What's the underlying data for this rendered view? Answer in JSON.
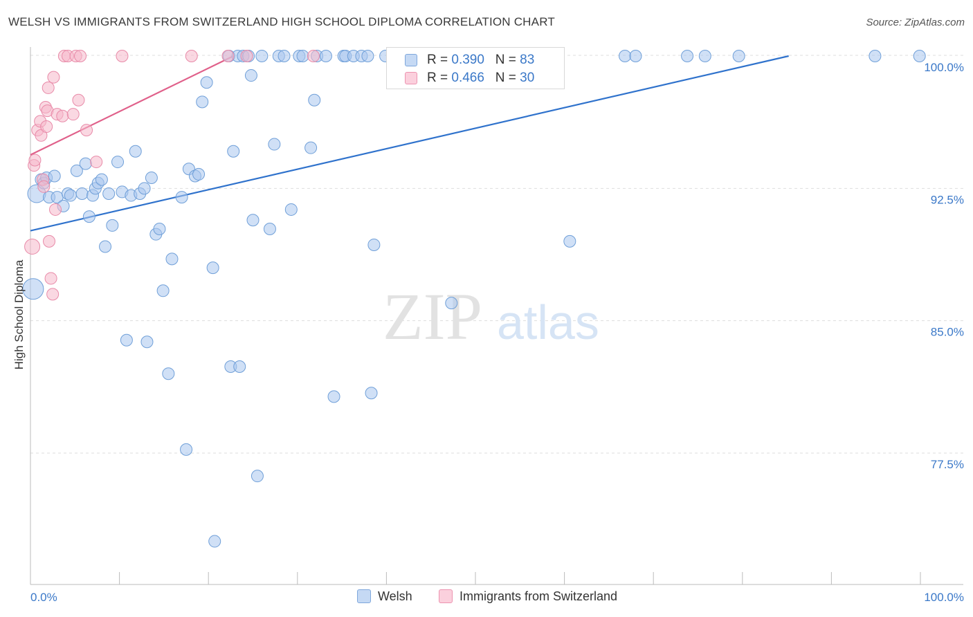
{
  "title": "WELSH VS IMMIGRANTS FROM SWITZERLAND HIGH SCHOOL DIPLOMA CORRELATION CHART",
  "source": "Source: ZipAtlas.com",
  "watermark": {
    "zip": "ZIP",
    "atlas": "atlas"
  },
  "legend": {
    "welsh": {
      "r_label": "R =",
      "r_value": "0.390",
      "n_label": "N =",
      "n_value": "83"
    },
    "swiss": {
      "r_label": "R =",
      "r_value": "0.466",
      "n_label": "N =",
      "n_value": "30"
    }
  },
  "bottom_legend": {
    "welsh": "Welsh",
    "swiss": "Immigrants from Switzerland"
  },
  "colors": {
    "welsh_fill": "#a9c7ef",
    "welsh_stroke": "#6f9fd8",
    "welsh_line": "#2f72cc",
    "swiss_fill": "#f6b8cb",
    "swiss_stroke": "#e88aa8",
    "swiss_line": "#e0608a",
    "tick_label": "#3a78c8",
    "grid": "#dddddd"
  },
  "chart_data": {
    "type": "scatter",
    "title": "WELSH VS IMMIGRANTS FROM SWITZERLAND HIGH SCHOOL DIPLOMA CORRELATION CHART",
    "xlabel": "",
    "ylabel": "High School Diploma",
    "xlim": [
      0,
      100
    ],
    "ylim": [
      70.5,
      101
    ],
    "x_tick_labels": [
      "0.0%",
      "100.0%"
    ],
    "y_ticks": [
      77.5,
      85.0,
      92.5,
      100.0
    ],
    "y_tick_labels": [
      "77.5%",
      "85.0%",
      "92.5%",
      "100.0%"
    ],
    "grid": true,
    "series": [
      {
        "name": "Welsh",
        "points": [
          [
            0.3,
            86.8
          ],
          [
            0.7,
            92.2
          ],
          [
            1.2,
            93.0
          ],
          [
            1.5,
            92.8
          ],
          [
            1.8,
            93.1
          ],
          [
            2.1,
            92.0
          ],
          [
            2.7,
            93.2
          ],
          [
            3.0,
            92.0
          ],
          [
            3.7,
            91.5
          ],
          [
            4.2,
            92.2
          ],
          [
            4.5,
            92.1
          ],
          [
            5.2,
            93.5
          ],
          [
            5.8,
            92.2
          ],
          [
            6.2,
            93.9
          ],
          [
            6.6,
            90.9
          ],
          [
            7.0,
            92.1
          ],
          [
            7.3,
            92.5
          ],
          [
            7.6,
            92.8
          ],
          [
            8.0,
            93.0
          ],
          [
            8.4,
            89.2
          ],
          [
            8.8,
            92.2
          ],
          [
            9.2,
            90.4
          ],
          [
            9.8,
            94.0
          ],
          [
            10.3,
            92.3
          ],
          [
            10.8,
            83.9
          ],
          [
            11.3,
            92.1
          ],
          [
            11.8,
            94.6
          ],
          [
            12.3,
            92.2
          ],
          [
            12.8,
            92.5
          ],
          [
            13.1,
            83.8
          ],
          [
            13.6,
            93.1
          ],
          [
            14.1,
            89.9
          ],
          [
            14.5,
            90.2
          ],
          [
            14.9,
            86.7
          ],
          [
            15.5,
            82.0
          ],
          [
            15.9,
            88.5
          ],
          [
            17.0,
            92.0
          ],
          [
            17.5,
            77.7
          ],
          [
            17.8,
            93.6
          ],
          [
            18.5,
            93.2
          ],
          [
            18.9,
            93.3
          ],
          [
            19.3,
            97.4
          ],
          [
            19.8,
            98.5
          ],
          [
            20.5,
            88.0
          ],
          [
            20.7,
            72.5
          ],
          [
            22.3,
            100.0
          ],
          [
            22.5,
            82.4
          ],
          [
            22.8,
            94.6
          ],
          [
            23.3,
            100.0
          ],
          [
            23.5,
            82.4
          ],
          [
            23.9,
            100.0
          ],
          [
            24.5,
            100.0
          ],
          [
            24.8,
            98.9
          ],
          [
            25.0,
            90.7
          ],
          [
            25.5,
            76.2
          ],
          [
            26.0,
            100.0
          ],
          [
            26.9,
            90.2
          ],
          [
            27.4,
            95.0
          ],
          [
            27.9,
            100.0
          ],
          [
            28.5,
            100.0
          ],
          [
            29.3,
            91.3
          ],
          [
            30.2,
            100.0
          ],
          [
            30.6,
            100.0
          ],
          [
            31.5,
            94.8
          ],
          [
            31.9,
            97.5
          ],
          [
            32.2,
            100.0
          ],
          [
            33.2,
            100.0
          ],
          [
            34.1,
            80.7
          ],
          [
            35.2,
            100.0
          ],
          [
            35.4,
            100.0
          ],
          [
            36.3,
            100.0
          ],
          [
            37.2,
            100.0
          ],
          [
            37.9,
            100.0
          ],
          [
            38.3,
            80.9
          ],
          [
            38.6,
            89.3
          ],
          [
            39.9,
            100.0
          ],
          [
            41.0,
            100.0
          ],
          [
            47.3,
            86.0
          ],
          [
            54.3,
            100.0
          ],
          [
            60.6,
            89.5
          ],
          [
            66.8,
            100.0
          ],
          [
            68.0,
            100.0
          ],
          [
            73.8,
            100.0
          ]
        ],
        "extra_points": [
          [
            75.8,
            100.0
          ],
          [
            79.6,
            100.0
          ],
          [
            94.9,
            100.0
          ],
          [
            99.9,
            100.0
          ]
        ]
      },
      {
        "name": "Immigrants from Switzerland",
        "points": [
          [
            0.2,
            89.2
          ],
          [
            0.4,
            93.8
          ],
          [
            0.5,
            94.1
          ],
          [
            0.8,
            95.8
          ],
          [
            1.1,
            96.3
          ],
          [
            1.2,
            95.5
          ],
          [
            1.4,
            93.0
          ],
          [
            1.5,
            92.6
          ],
          [
            1.7,
            97.1
          ],
          [
            1.8,
            96.0
          ],
          [
            1.9,
            96.9
          ],
          [
            2.0,
            98.2
          ],
          [
            2.1,
            89.5
          ],
          [
            2.3,
            87.4
          ],
          [
            2.5,
            86.5
          ],
          [
            2.6,
            98.8
          ],
          [
            2.8,
            91.3
          ],
          [
            3.0,
            96.7
          ],
          [
            3.6,
            96.6
          ],
          [
            3.8,
            100.0
          ],
          [
            4.2,
            100.0
          ],
          [
            4.8,
            96.7
          ],
          [
            5.1,
            100.0
          ],
          [
            5.4,
            97.5
          ],
          [
            5.6,
            100.0
          ],
          [
            6.3,
            95.8
          ],
          [
            7.4,
            94.0
          ],
          [
            10.3,
            100.0
          ],
          [
            18.1,
            100.0
          ],
          [
            22.2,
            100.0
          ]
        ],
        "extra_points": [
          [
            24.3,
            100.0
          ],
          [
            31.8,
            100.0
          ]
        ]
      }
    ],
    "trendlines": [
      {
        "series": "Welsh",
        "x": [
          0,
          85.2
        ],
        "y": [
          90.1,
          100.0
        ]
      },
      {
        "series": "Immigrants from Switzerland",
        "x": [
          0,
          22.8
        ],
        "y": [
          94.4,
          100.0
        ]
      }
    ]
  }
}
